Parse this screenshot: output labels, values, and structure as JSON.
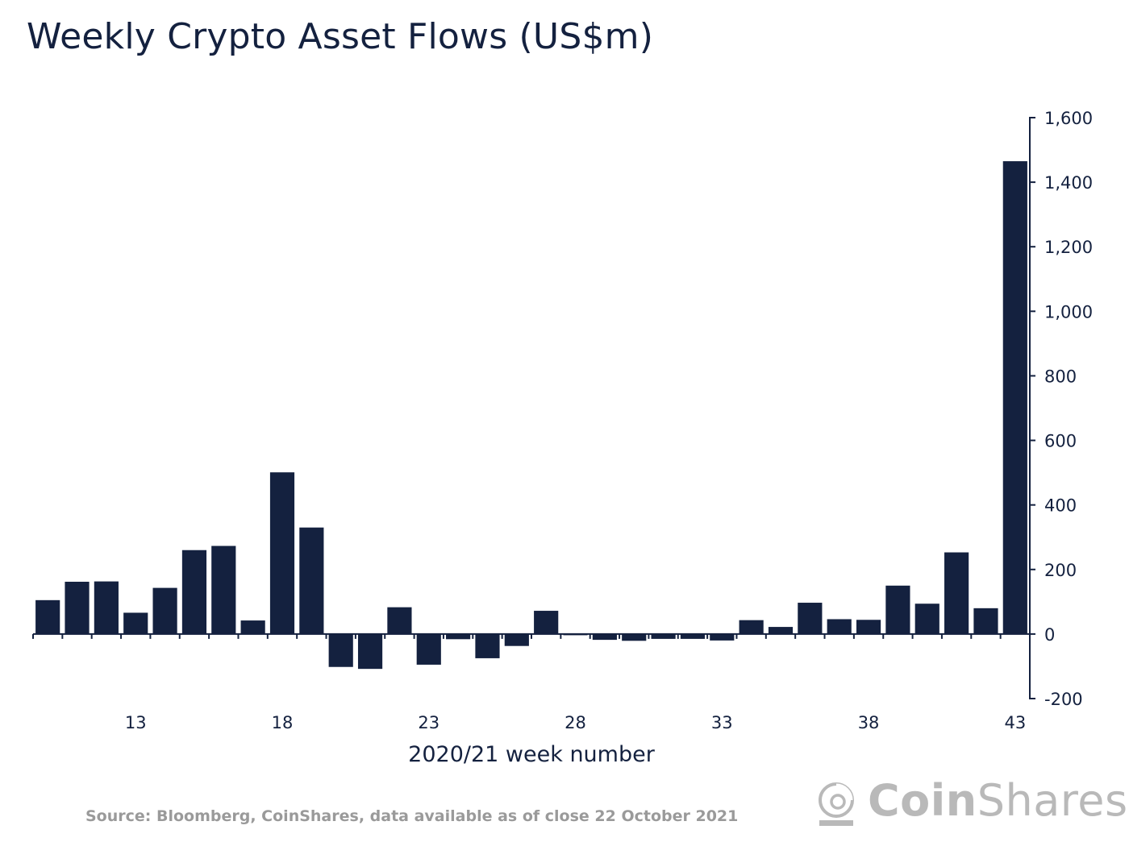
{
  "title": "Weekly Crypto Asset Flows (US$m)",
  "source": "Source: Bloomberg, CoinShares, data available as of close 22 October 2021",
  "brand": {
    "coin": "Coin",
    "shares": "Shares",
    "logo_icon": "coinshares-logo-icon"
  },
  "colors": {
    "bar": "#14213f",
    "axis": "#14213f",
    "source_text": "#9a9a9a",
    "logo": "#b9b9b9"
  },
  "chart_data": {
    "type": "bar",
    "title": "Weekly Crypto Asset Flows (US$m)",
    "xlabel": "2020/21 week number",
    "ylabel": "",
    "ylim": [
      -200,
      1600
    ],
    "yticks": [
      1600,
      1400,
      1200,
      1000,
      800,
      600,
      400,
      200,
      0,
      -200
    ],
    "ytick_labels": [
      "1,600",
      "1,400",
      "1,200",
      "1,000",
      "800",
      "600",
      "400",
      "200",
      "0",
      "-200"
    ],
    "y_axis_position": "right",
    "xtick_labels": [
      "13",
      "18",
      "23",
      "28",
      "33",
      "38",
      "43"
    ],
    "grid": false,
    "categories": [
      10,
      11,
      12,
      13,
      14,
      15,
      16,
      17,
      18,
      19,
      20,
      21,
      22,
      23,
      24,
      25,
      26,
      27,
      28,
      29,
      30,
      31,
      32,
      33,
      34,
      35,
      36,
      37,
      38,
      39,
      40,
      41,
      42,
      43
    ],
    "values": [
      105,
      162,
      163,
      66,
      143,
      260,
      273,
      42,
      501,
      330,
      -102,
      -108,
      83,
      -95,
      -16,
      -75,
      -37,
      72,
      -3,
      -18,
      -21,
      -15,
      -15,
      -20,
      43,
      22,
      97,
      46,
      44,
      150,
      94,
      253,
      80,
      1465
    ]
  }
}
